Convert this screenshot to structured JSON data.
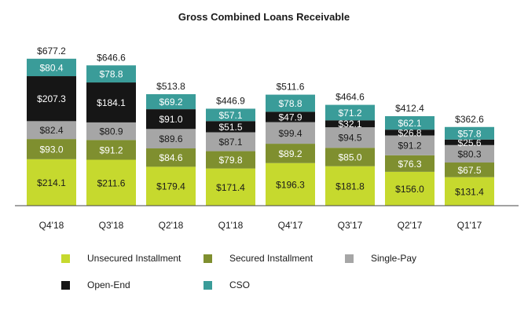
{
  "chart_data": {
    "type": "bar",
    "stacked": true,
    "title": "Gross Combined Loans Receivable",
    "xlabel": "",
    "ylabel": "",
    "ylim": [
      0,
      700
    ],
    "grid": false,
    "legend_position": "bottom",
    "categories": [
      "Q4'18",
      "Q3'18",
      "Q2'18",
      "Q1'18",
      "Q4'17",
      "Q3'17",
      "Q2'17",
      "Q1'17"
    ],
    "totals": [
      "$677.2",
      "$646.6",
      "$513.8",
      "$446.9",
      "$511.6",
      "$464.6",
      "$412.4",
      "$362.6"
    ],
    "total_values": [
      677.2,
      646.6,
      513.8,
      446.9,
      511.6,
      464.6,
      412.4,
      362.6
    ],
    "series": [
      {
        "name": "Unsecured Installment",
        "color": "#c6d92e",
        "label_color": "#1a1a1a",
        "values": [
          214.1,
          211.6,
          179.4,
          171.4,
          196.3,
          181.8,
          156.0,
          131.4
        ],
        "labels": [
          "$214.1",
          "$211.6",
          "$179.4",
          "$171.4",
          "$196.3",
          "$181.8",
          "$156.0",
          "$131.4"
        ]
      },
      {
        "name": "Secured Installment",
        "color": "#7f8f2f",
        "label_color": "#ffffff",
        "values": [
          93.0,
          91.2,
          84.6,
          79.8,
          89.2,
          85.0,
          76.3,
          67.5
        ],
        "labels": [
          "$93.0",
          "$91.2",
          "$84.6",
          "$79.8",
          "$89.2",
          "$85.0",
          "$76.3",
          "$67.5"
        ]
      },
      {
        "name": "Single-Pay",
        "color": "#a6a6a6",
        "label_color": "#1a1a1a",
        "values": [
          82.4,
          80.9,
          89.6,
          87.1,
          99.4,
          94.5,
          91.2,
          80.3
        ],
        "labels": [
          "$82.4",
          "$80.9",
          "$89.6",
          "$87.1",
          "$99.4",
          "$94.5",
          "$91.2",
          "$80.3"
        ]
      },
      {
        "name": "Open-End",
        "color": "#161616",
        "label_color": "#ffffff",
        "values": [
          207.3,
          184.1,
          91.0,
          51.5,
          47.9,
          32.1,
          26.8,
          25.6
        ],
        "labels": [
          "$207.3",
          "$184.1",
          "$91.0",
          "$51.5",
          "$47.9",
          "$32.1",
          "$26.8",
          "$25.6"
        ]
      },
      {
        "name": "CSO",
        "color": "#3a9c99",
        "label_color": "#ffffff",
        "values": [
          80.4,
          78.8,
          69.2,
          57.1,
          78.8,
          71.2,
          62.1,
          57.8
        ],
        "labels": [
          "$80.4",
          "$78.8",
          "$69.2",
          "$57.1",
          "$78.8",
          "$71.2",
          "$62.1",
          "$57.8"
        ]
      }
    ]
  }
}
